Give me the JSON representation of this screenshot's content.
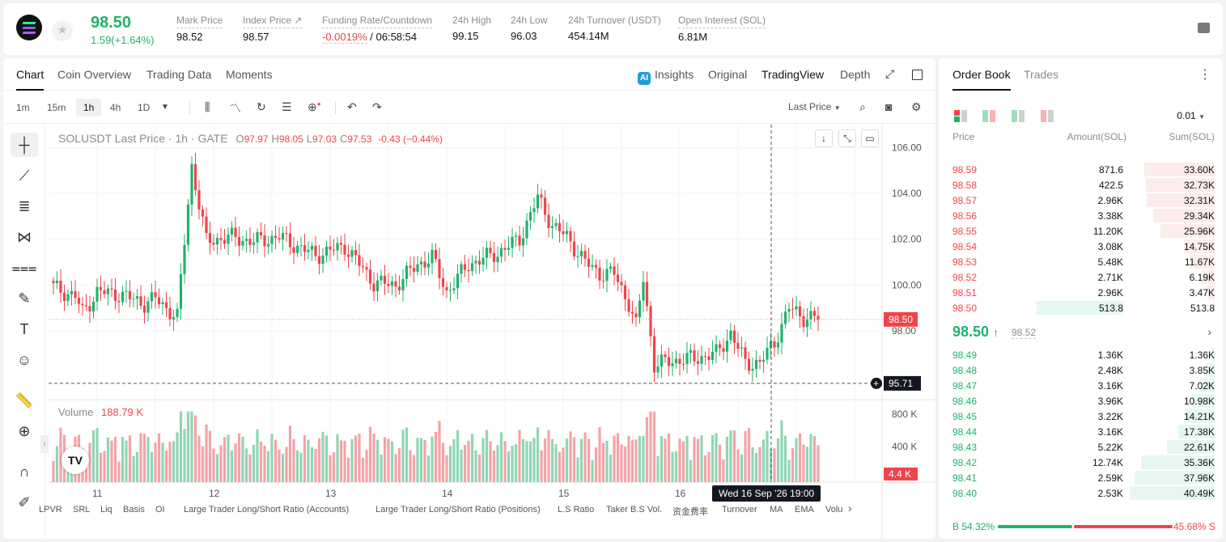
{
  "ticker": {
    "last_price": "98.50",
    "change": "1.59(+1.64%)",
    "stats": [
      {
        "label": "Mark Price",
        "value": "98.52"
      },
      {
        "label": "Index Price ↗",
        "value": "98.57"
      },
      {
        "label": "Funding Rate/Countdown",
        "value_red": "-0.0019%",
        "value": " / 06:58:54"
      },
      {
        "label": "24h High",
        "value": "99.15"
      },
      {
        "label": "24h Low",
        "value": "96.03"
      },
      {
        "label": "24h Turnover (USDT)",
        "value": "454.14M"
      },
      {
        "label": "Open Interest (SOL)",
        "value": "6.81M"
      }
    ]
  },
  "chart_tabs": [
    "Chart",
    "Coin Overview",
    "Trading Data",
    "Moments"
  ],
  "chart_views": {
    "insights": "Insights",
    "original": "Original",
    "tradingview": "TradingView",
    "depth": "Depth"
  },
  "timeframes": [
    "1m",
    "15m",
    "1h",
    "4h",
    "1D"
  ],
  "active_timeframe": "1h",
  "price_type": "Last Price",
  "legend": {
    "symbol": "SOLUSDT Last Price · 1h · GATE",
    "o": "97.97",
    "h": "98.05",
    "l": "97.03",
    "c": "97.53",
    "chg": "-0.43 (−0.44%)"
  },
  "volume_legend": {
    "label": "Volume",
    "value": "188.79 K"
  },
  "crosshair_label": "Wed 16 Sep '26   19:00",
  "indicators": [
    "LPVR",
    "SRL",
    "Liq",
    "Basis",
    "OI",
    "Large Trader Long/Short Ratio (Accounts)",
    "Large Trader Long/Short Ratio (Positions)",
    "L.S Ratio",
    "Taker B.S Vol.",
    "资金费率",
    "Turnover",
    "MA",
    "EMA",
    "Volu"
  ],
  "orderbook": {
    "tabs": [
      "Order Book",
      "Trades"
    ],
    "precision": "0.01",
    "headers": {
      "price": "Price",
      "amount": "Amount(SOL)",
      "sum": "Sum(SOL)"
    },
    "asks": [
      {
        "price": "98.59",
        "amount": "871.6",
        "sum": "33.60K",
        "depth": 0.83
      },
      {
        "price": "98.58",
        "amount": "422.5",
        "sum": "32.73K",
        "depth": 0.81
      },
      {
        "price": "98.57",
        "amount": "2.96K",
        "sum": "32.31K",
        "depth": 0.8
      },
      {
        "price": "98.56",
        "amount": "3.38K",
        "sum": "29.34K",
        "depth": 0.72
      },
      {
        "price": "98.55",
        "amount": "11.20K",
        "sum": "25.96K",
        "depth": 0.64
      },
      {
        "price": "98.54",
        "amount": "3.08K",
        "sum": "14.75K",
        "depth": 0.36
      },
      {
        "price": "98.53",
        "amount": "5.48K",
        "sum": "11.67K",
        "depth": 0.29
      },
      {
        "price": "98.52",
        "amount": "2.71K",
        "sum": "6.19K",
        "depth": 0.15
      },
      {
        "price": "98.51",
        "amount": "2.96K",
        "sum": "3.47K",
        "depth": 0.09
      },
      {
        "price": "98.50",
        "amount": "513.8",
        "sum": "513.8",
        "depth": 0.01
      }
    ],
    "mid_price": "98.50",
    "mid_mark": "98.52",
    "bids": [
      {
        "price": "98.49",
        "amount": "1.36K",
        "sum": "1.36K",
        "depth": 0.03
      },
      {
        "price": "98.48",
        "amount": "2.48K",
        "sum": "3.85K",
        "depth": 0.1
      },
      {
        "price": "98.47",
        "amount": "3.16K",
        "sum": "7.02K",
        "depth": 0.17
      },
      {
        "price": "98.46",
        "amount": "3.96K",
        "sum": "10.98K",
        "depth": 0.27
      },
      {
        "price": "98.45",
        "amount": "3.22K",
        "sum": "14.21K",
        "depth": 0.35
      },
      {
        "price": "98.44",
        "amount": "3.16K",
        "sum": "17.38K",
        "depth": 0.43
      },
      {
        "price": "98.43",
        "amount": "5.22K",
        "sum": "22.61K",
        "depth": 0.56
      },
      {
        "price": "98.42",
        "amount": "12.74K",
        "sum": "35.36K",
        "depth": 0.87
      },
      {
        "price": "98.41",
        "amount": "2.59K",
        "sum": "37.96K",
        "depth": 0.94
      },
      {
        "price": "98.40",
        "amount": "2.53K",
        "sum": "40.49K",
        "depth": 1.0
      }
    ],
    "buy_ratio": "B 54.32%",
    "sell_ratio": "45.68% S",
    "buy_fraction": 0.5432
  },
  "colors": {
    "up": "#20b26c",
    "down": "#ef454a",
    "up_bg": "#e6f7ef",
    "down_bg": "#fdecec",
    "brand": "#121212"
  },
  "chart_data": {
    "type": "candlestick",
    "title": "SOLUSDT Last Price · 1h · GATE",
    "y_ticks": [
      "106.00",
      "104.00",
      "102.00",
      "100.00",
      "98.00"
    ],
    "ylim": [
      95.0,
      107.0
    ],
    "x_ticks": [
      "11",
      "12",
      "13",
      "14",
      "15",
      "16"
    ],
    "last_price_label": "98.50",
    "crosshair_price_label": "95.71",
    "volume_ticks": [
      "800 K",
      "400 K"
    ],
    "volume_last_label": "4.4 K",
    "close_anchors": [
      [
        0,
        99.9
      ],
      [
        6,
        99.5
      ],
      [
        8,
        98.8
      ],
      [
        12,
        99.7
      ],
      [
        18,
        99.6
      ],
      [
        25,
        99.2
      ],
      [
        28,
        99.4
      ],
      [
        34,
        98.6
      ],
      [
        38,
        105.2
      ],
      [
        42,
        101.9
      ],
      [
        48,
        102.1
      ],
      [
        55,
        101.9
      ],
      [
        62,
        102.1
      ],
      [
        68,
        101.6
      ],
      [
        72,
        101.3
      ],
      [
        80,
        101.7
      ],
      [
        88,
        100.1
      ],
      [
        94,
        100.0
      ],
      [
        100,
        100.9
      ],
      [
        104,
        101.2
      ],
      [
        108,
        99.7
      ],
      [
        114,
        100.9
      ],
      [
        122,
        101.4
      ],
      [
        128,
        102.0
      ],
      [
        133,
        103.8
      ],
      [
        137,
        102.6
      ],
      [
        141,
        102.1
      ],
      [
        146,
        101.0
      ],
      [
        150,
        100.5
      ],
      [
        154,
        100.5
      ],
      [
        158,
        99.2
      ],
      [
        160,
        98.2
      ],
      [
        162,
        100.3
      ],
      [
        165,
        96.5
      ],
      [
        170,
        96.7
      ],
      [
        176,
        96.8
      ],
      [
        182,
        97.0
      ],
      [
        186,
        97.9
      ],
      [
        190,
        96.6
      ],
      [
        194,
        96.6
      ],
      [
        198,
        97.5
      ],
      [
        202,
        99.0
      ],
      [
        206,
        98.6
      ],
      [
        210,
        98.55
      ]
    ]
  }
}
